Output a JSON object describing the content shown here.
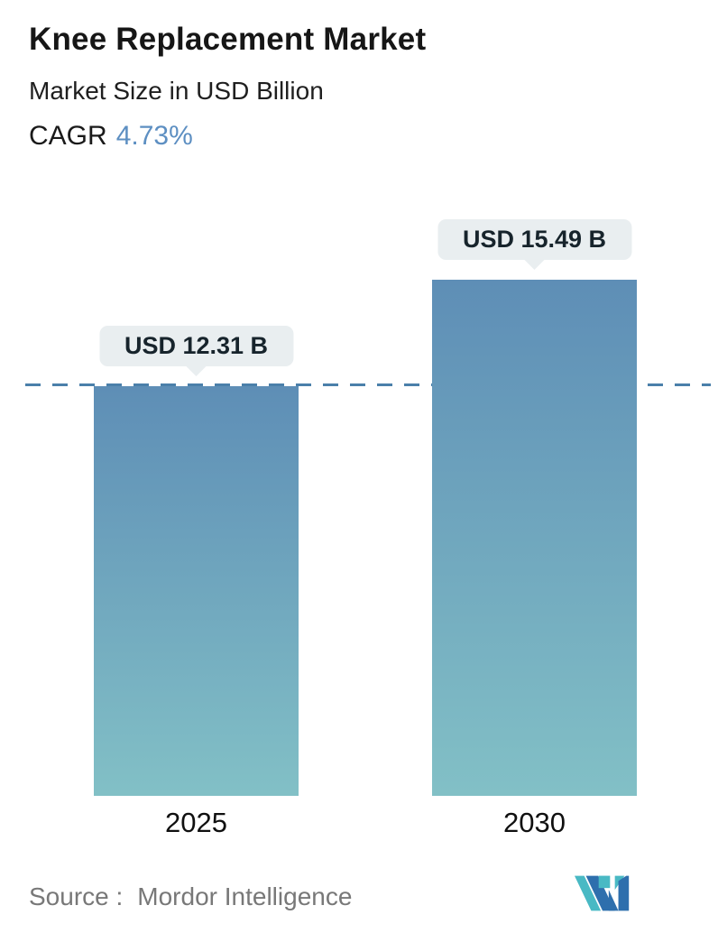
{
  "header": {
    "title": "Knee Replacement Market",
    "subtitle": "Market Size in USD Billion",
    "cagr_label": "CAGR",
    "cagr_value": "4.73%"
  },
  "chart_data": {
    "type": "bar",
    "title": "Knee Replacement Market",
    "ylabel": "Market Size in USD Billion",
    "categories": [
      "2025",
      "2030"
    ],
    "values": [
      12.31,
      15.49
    ],
    "value_labels": [
      "USD 12.31 B",
      "USD 15.49 B"
    ],
    "cagr_percent": 4.73,
    "ylim": [
      0,
      16
    ],
    "grid": false,
    "legend": "none",
    "reference_line": {
      "value": 12.31,
      "style": "dashed"
    },
    "colors": {
      "bar_gradient_top": "#5e8eb6",
      "bar_gradient_bottom": "#82c0c6",
      "reference_line": "#4b80aa",
      "cagr_value_text": "#5d8fc2",
      "callout_bg": "#e9eef0"
    }
  },
  "footer": {
    "source_label": "Source :",
    "source_value": "Mordor Intelligence",
    "logo_icon": "mordor-intelligence-logo",
    "logo_colors": {
      "teal": "#49b9c4",
      "blue": "#2e6fad"
    }
  }
}
